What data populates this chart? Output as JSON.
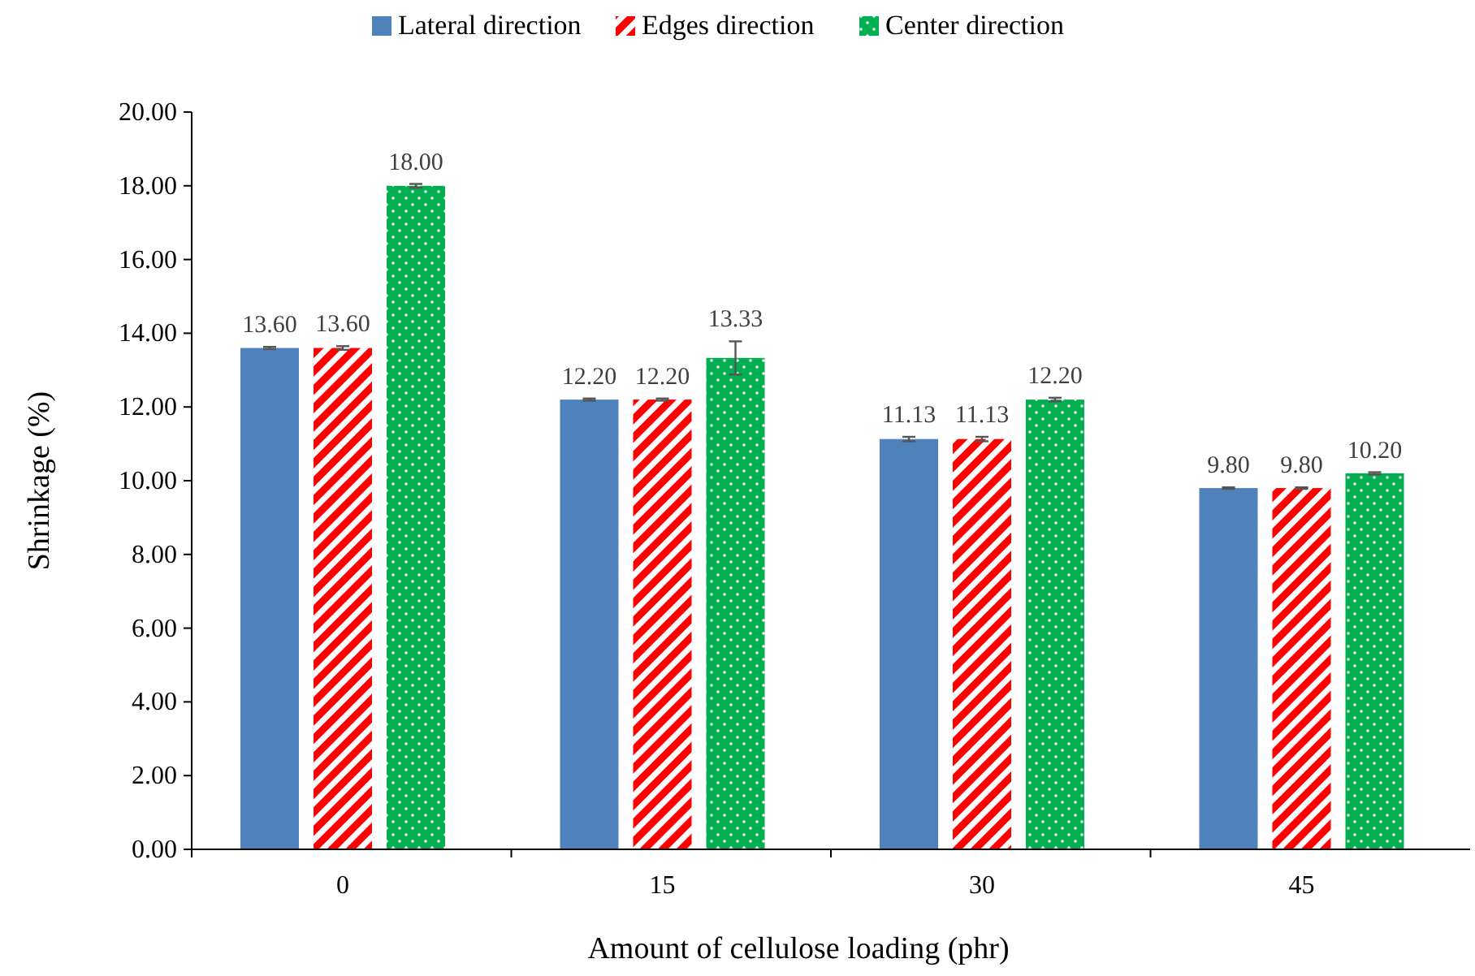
{
  "chart_data": {
    "type": "bar",
    "xlabel": "Amount of cellulose loading (phr)",
    "ylabel": "Shrinkage (%)",
    "categories": [
      "0",
      "15",
      "30",
      "45"
    ],
    "series": [
      {
        "name": "Lateral direction",
        "color": "#4f81bd",
        "values": [
          13.6,
          12.2,
          11.13,
          9.8
        ],
        "errors": [
          0.03,
          0.03,
          0.06,
          0.02
        ]
      },
      {
        "name": "Edges direction",
        "color": "#ff0000",
        "values": [
          13.6,
          12.2,
          11.13,
          9.8
        ],
        "errors": [
          0.05,
          0.03,
          0.06,
          0.02
        ]
      },
      {
        "name": "Center direction",
        "color": "#00b050",
        "values": [
          18.0,
          13.33,
          12.2,
          10.2
        ],
        "errors": [
          0.05,
          0.45,
          0.05,
          0.03
        ]
      }
    ],
    "ylim": [
      0,
      20
    ],
    "yticks": [
      {
        "value": 0,
        "label": "0.00"
      },
      {
        "value": 2,
        "label": "2.00"
      },
      {
        "value": 4,
        "label": "4.00"
      },
      {
        "value": 6,
        "label": "6.00"
      },
      {
        "value": 8,
        "label": "8.00"
      },
      {
        "value": 10,
        "label": "10.00"
      },
      {
        "value": 12,
        "label": "12.00"
      },
      {
        "value": 14,
        "label": "14.00"
      },
      {
        "value": 16,
        "label": "16.00"
      },
      {
        "value": 18,
        "label": "18.00"
      },
      {
        "value": 20,
        "label": "20.00"
      }
    ],
    "value_labels": [
      [
        "13.60",
        "12.20",
        "11.13",
        "9.80"
      ],
      [
        "13.60",
        "12.20",
        "11.13",
        "9.80"
      ],
      [
        "18.00",
        "13.33",
        "12.20",
        "10.20"
      ]
    ],
    "legend": "top",
    "grid": false
  }
}
